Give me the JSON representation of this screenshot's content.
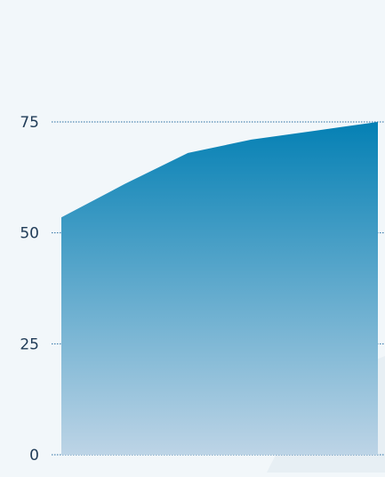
{
  "chart_data": {
    "type": "area",
    "title": "",
    "xlabel": "",
    "ylabel": "",
    "ylim": [
      0,
      75
    ],
    "yticks": [
      0,
      25,
      50,
      75
    ],
    "grid": true,
    "x": [
      1,
      2,
      3,
      4,
      5,
      6
    ],
    "values": [
      53.5,
      61,
      68,
      71,
      73,
      75
    ]
  },
  "colors": {
    "background": "#f2f7fa",
    "background_accent": "#e2ebf1",
    "tick_label": "#1f3b57",
    "gridline": "#2a6fa3",
    "area_top": "#0480b4",
    "area_bottom": "#bdd4e6"
  }
}
